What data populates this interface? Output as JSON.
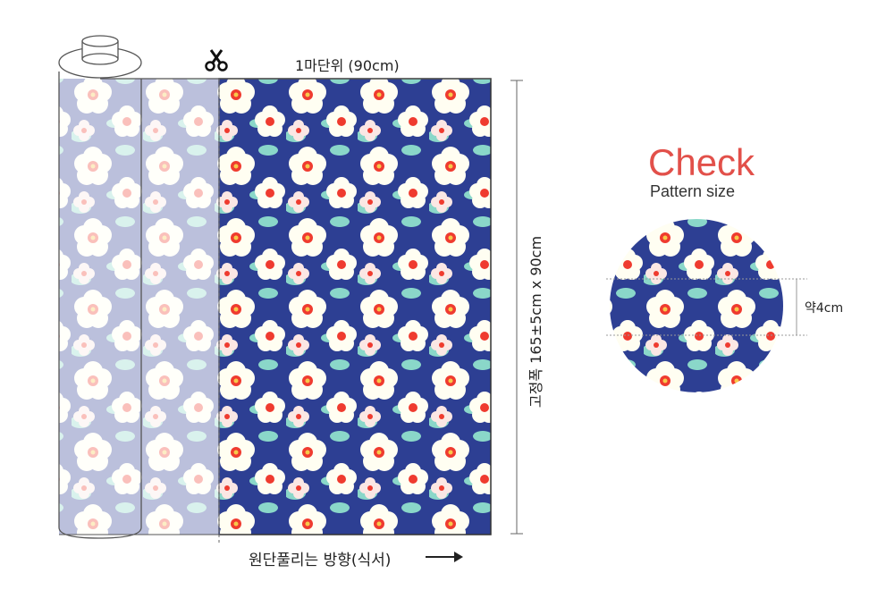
{
  "labels": {
    "cut_unit": "1마단위 (90cm)",
    "direction": "원단풀리는 방향(식서)",
    "width_spec": "고정폭 165±5cm x 90cm",
    "check_title": "Check",
    "check_subtitle": "Pattern size",
    "pattern_size": "약4cm"
  },
  "icons": [
    "scissors-icon",
    "right-arrow-icon"
  ],
  "colors": {
    "fabric_bg": "#2d3f93",
    "petal": "#fffef2",
    "flower_center": "#ef3b2f",
    "leaf": "#8ad7c9",
    "accent": "#e2504a"
  }
}
